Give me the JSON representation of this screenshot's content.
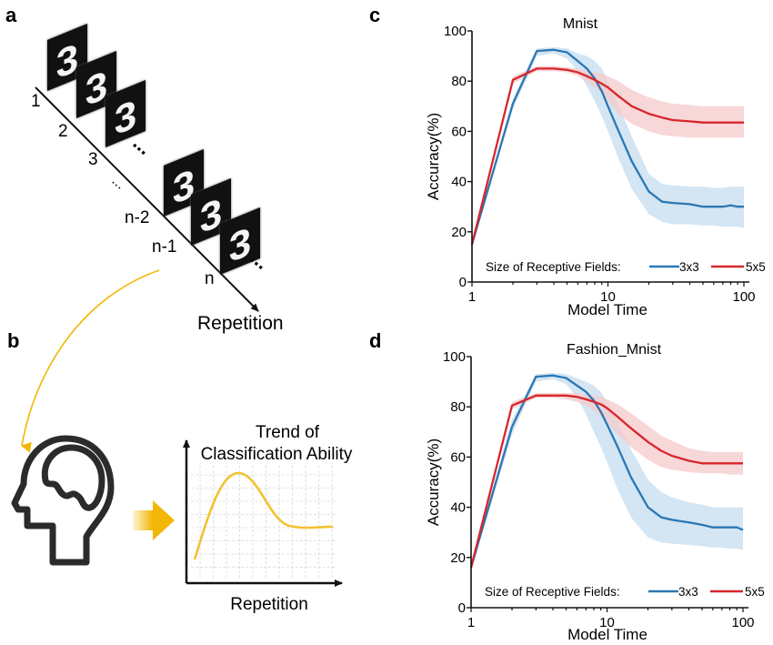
{
  "panels": {
    "a": "a",
    "b": "b",
    "c": "c",
    "d": "d"
  },
  "panel_a": {
    "axis_label": "Repetition",
    "ticks": [
      "1",
      "2",
      "3",
      "...",
      "n-2",
      "n-1",
      "n"
    ],
    "digit_glyph": "3",
    "ellipsis": "..."
  },
  "panel_b": {
    "title_line1": "Trend of",
    "title_line2": "Classification Ability",
    "xlabel": "Repetition",
    "icons": [
      "head-brain-icon",
      "arrow-right-icon"
    ],
    "accent_color": "#f2b705"
  },
  "colors": {
    "series_3x3": "#2a78b4",
    "series_3x3_band": "#c6dcef",
    "series_5x5": "#d7262c",
    "series_5x5_band": "#f6c9cb",
    "accent": "#f2b705"
  },
  "chart_data": [
    {
      "type": "line",
      "title": "Mnist",
      "xlabel": "Model Time",
      "ylabel": "Accuracy(%)",
      "xscale": "log",
      "xlim": [
        1,
        100
      ],
      "ylim": [
        0,
        100
      ],
      "xticks": [
        "1",
        "10",
        "100"
      ],
      "yticks": [
        "0",
        "20",
        "40",
        "60",
        "80",
        "100"
      ],
      "grid": false,
      "legend": {
        "title": "Size of Receptive Fields:",
        "placement": "bottom",
        "entries": [
          "3x3",
          "5x5"
        ]
      },
      "x": [
        1,
        2,
        3,
        4,
        5,
        6,
        7,
        8,
        9,
        10,
        12,
        15,
        20,
        25,
        30,
        40,
        50,
        60,
        70,
        80,
        90,
        100
      ],
      "series": [
        {
          "name": "3x3",
          "values": [
            15,
            71,
            92,
            92.5,
            91.5,
            88,
            85,
            81,
            76,
            70,
            60,
            48,
            36,
            32,
            31.5,
            31,
            30,
            30,
            30,
            30.5,
            30,
            30
          ],
          "lower": [
            14,
            69,
            90,
            91,
            89,
            84,
            78,
            72,
            66,
            60,
            49,
            37,
            27,
            24,
            23,
            23,
            22.5,
            22.5,
            22,
            22,
            22,
            21.5
          ],
          "upper": [
            16,
            73,
            93,
            93.5,
            93,
            91,
            90,
            88,
            85,
            80,
            70,
            58,
            43,
            39,
            38.5,
            38,
            38,
            37.5,
            37.5,
            38,
            38,
            38
          ]
        },
        {
          "name": "5x5",
          "values": [
            15,
            80.5,
            85,
            85,
            84.5,
            83.5,
            82,
            80.5,
            79,
            77.5,
            74,
            70,
            67,
            65.5,
            64.5,
            64,
            63.5,
            63.5,
            63.5,
            63.5,
            63.5,
            63.5
          ],
          "lower": [
            14,
            79,
            84,
            84,
            83.5,
            82,
            80,
            77.5,
            75,
            72,
            67,
            63,
            60,
            58.5,
            58,
            57.5,
            57.5,
            57.5,
            57.5,
            57.5,
            57.5,
            57.5
          ],
          "upper": [
            16,
            82,
            86,
            86,
            85.5,
            85,
            84,
            83.5,
            83,
            82,
            80,
            76.5,
            73.5,
            72,
            71,
            70.5,
            70,
            70,
            70,
            70,
            70,
            70
          ]
        }
      ]
    },
    {
      "type": "line",
      "title": "Fashion_Mnist",
      "xlabel": "Model Time",
      "ylabel": "Accuracy(%)",
      "xscale": "log",
      "xlim": [
        1,
        100
      ],
      "ylim": [
        0,
        100
      ],
      "xticks": [
        "1",
        "10",
        "100"
      ],
      "yticks": [
        "0",
        "20",
        "40",
        "60",
        "80",
        "100"
      ],
      "grid": false,
      "legend": {
        "title": "Size of Receptive Fields:",
        "placement": "bottom",
        "entries": [
          "3x3",
          "5x5"
        ]
      },
      "x": [
        1,
        2,
        3,
        4,
        5,
        6,
        7,
        8,
        9,
        10,
        12,
        15,
        20,
        25,
        30,
        40,
        50,
        60,
        70,
        80,
        90,
        100
      ],
      "series": [
        {
          "name": "3x3",
          "values": [
            16,
            72,
            92,
            92.5,
            91.5,
            88.5,
            86,
            82.5,
            78,
            73,
            64,
            52,
            40,
            36,
            35,
            34,
            33,
            32,
            32,
            32,
            32,
            31
          ],
          "lower": [
            15,
            69,
            90,
            91,
            89,
            84,
            77,
            70,
            64,
            58,
            47,
            36,
            28,
            26,
            25.5,
            25,
            24.5,
            24,
            24,
            23.5,
            23.5,
            23
          ],
          "upper": [
            17,
            75,
            93,
            93.5,
            93,
            91.5,
            90,
            88.5,
            86,
            82,
            74,
            63,
            51,
            46,
            44,
            42,
            41,
            40,
            40,
            40,
            40,
            40
          ]
        },
        {
          "name": "5x5",
          "values": [
            16,
            80.5,
            84.5,
            84.5,
            84.5,
            84,
            83,
            82,
            81,
            79.5,
            76,
            71.5,
            66,
            62.5,
            60.5,
            58.5,
            57.5,
            57.5,
            57.5,
            57.5,
            57.5,
            57.5
          ],
          "lower": [
            15,
            79,
            83.5,
            83.5,
            83,
            82,
            80.5,
            78.5,
            76.5,
            74,
            69,
            64,
            59,
            56,
            55,
            54,
            53.5,
            53.5,
            53.5,
            53,
            53,
            53
          ],
          "upper": [
            17,
            82,
            85.5,
            85.5,
            85.5,
            85.5,
            85,
            84.5,
            84,
            83,
            81,
            77.5,
            72.5,
            68.5,
            66.5,
            63.5,
            62.5,
            62,
            62,
            62,
            62,
            62
          ]
        }
      ]
    }
  ]
}
